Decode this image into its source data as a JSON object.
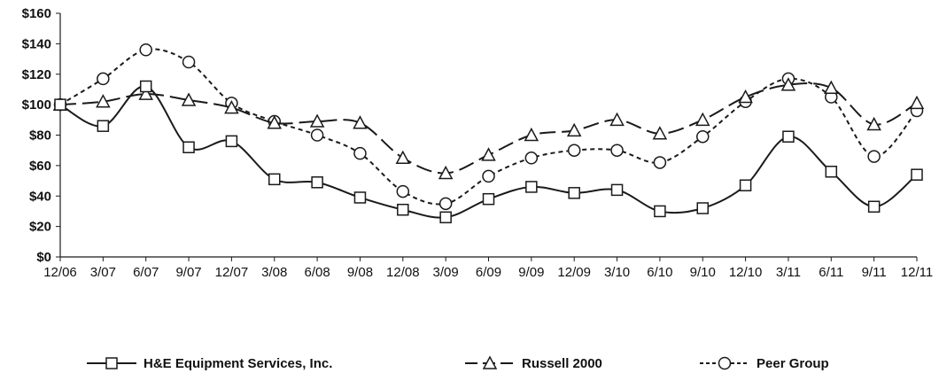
{
  "chart_data": {
    "type": "line",
    "title": "",
    "xlabel": "",
    "ylabel": "",
    "categories": [
      "12/06",
      "3/07",
      "6/07",
      "9/07",
      "12/07",
      "3/08",
      "6/08",
      "9/08",
      "12/08",
      "3/09",
      "6/09",
      "9/09",
      "12/09",
      "3/10",
      "6/10",
      "9/10",
      "12/10",
      "3/11",
      "6/11",
      "9/11",
      "12/11"
    ],
    "yticks": [
      "$0",
      "$20",
      "$40",
      "$60",
      "$80",
      "$100",
      "$120",
      "$140",
      "$160"
    ],
    "ylim": [
      0,
      160
    ],
    "grid": false,
    "legend_position": "bottom",
    "series": [
      {
        "name": "H&E Equipment Services, Inc.",
        "style": "solid",
        "marker": "square",
        "values": [
          100,
          86,
          112,
          72,
          76,
          51,
          49,
          39,
          31,
          26,
          38,
          46,
          42,
          44,
          30,
          32,
          47,
          79,
          56,
          33,
          54
        ]
      },
      {
        "name": "Russell 2000",
        "style": "long-dash",
        "marker": "triangle",
        "values": [
          100,
          102,
          107,
          103,
          98,
          88,
          89,
          88,
          65,
          55,
          67,
          80,
          83,
          90,
          81,
          90,
          105,
          113,
          111,
          87,
          101
        ]
      },
      {
        "name": "Peer Group",
        "style": "short-dash",
        "marker": "circle",
        "values": [
          100,
          117,
          136,
          128,
          101,
          89,
          80,
          68,
          43,
          35,
          53,
          65,
          70,
          70,
          62,
          79,
          102,
          117,
          105,
          66,
          96
        ]
      }
    ],
    "colors": {
      "line": "#1a1a1a",
      "marker_fill": "#ffffff"
    }
  }
}
